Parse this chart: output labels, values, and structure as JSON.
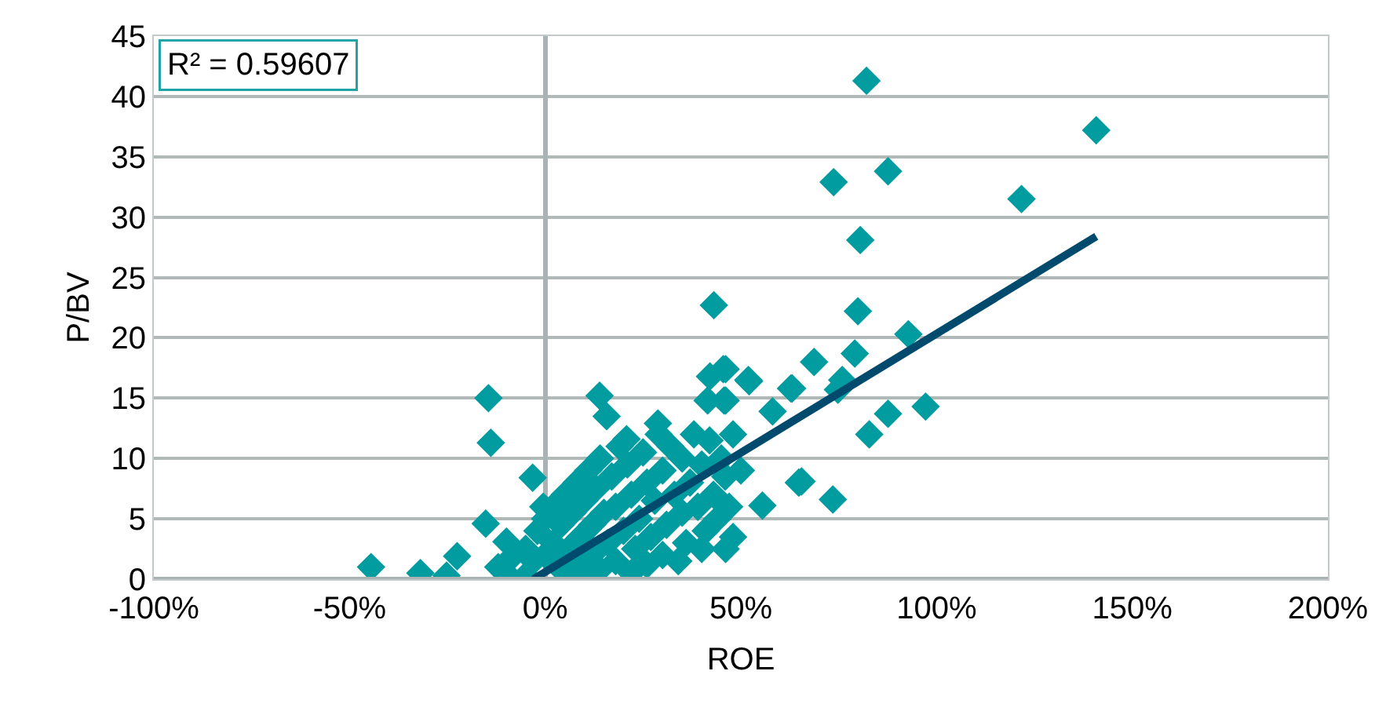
{
  "chart_data": {
    "type": "scatter",
    "xlabel": "ROE",
    "ylabel": "P/BV",
    "annotations": [
      "R² = 0.59607"
    ],
    "xlim": [
      -100,
      200
    ],
    "ylim": [
      0,
      45
    ],
    "xticks": [
      {
        "value": -100,
        "label": "-100%"
      },
      {
        "value": -50,
        "label": "-50%"
      },
      {
        "value": 0,
        "label": "0%"
      },
      {
        "value": 50,
        "label": "50%"
      },
      {
        "value": 100,
        "label": "100%"
      },
      {
        "value": 150,
        "label": "150%"
      },
      {
        "value": 200,
        "label": "200%"
      }
    ],
    "yticks": [
      0,
      5,
      10,
      15,
      20,
      25,
      30,
      35,
      40,
      45
    ],
    "grid": "y",
    "series": [
      {
        "color": "#009ca0",
        "marker": "diamond",
        "x": [
          82.1,
          140.8,
          73.7,
          87.6,
          121.7,
          80.5,
          43.1,
          79.9,
          92.8,
          79.1,
          68.7,
          51.9,
          63.1,
          74.8,
          75.9,
          97.2,
          87.6,
          82.8,
          73.5,
          64.8,
          45.5,
          45.7,
          -14.5,
          -13.9,
          -44.5,
          -31.9,
          -25.2,
          -22.5,
          -15.2,
          -3.2,
          -0.5,
          13.9,
          15.7,
          20.8,
          28.8,
          46.1,
          42.1,
          52.1,
          46.1,
          41.5,
          62.8,
          58.1,
          65.5,
          55.5,
          46.1,
          -9.9,
          -12,
          -10,
          -8,
          -5,
          -5,
          -3,
          -2,
          0,
          0,
          2,
          2,
          3,
          4,
          5,
          5,
          6,
          7,
          8,
          8,
          9,
          10,
          10,
          11,
          12,
          12,
          13,
          14,
          14,
          15,
          16,
          17,
          18,
          18,
          19,
          20,
          21,
          22,
          22,
          23,
          24,
          25,
          26,
          26,
          27,
          28,
          29,
          30,
          30,
          31,
          32,
          33,
          34,
          35,
          35,
          36,
          37,
          38,
          39,
          40,
          40,
          41,
          42,
          43,
          44,
          45,
          46,
          47,
          48,
          48,
          50
        ],
        "values": [
          41.3,
          37.2,
          32.9,
          33.8,
          31.5,
          28.1,
          22.7,
          22.2,
          20.3,
          18.7,
          18.0,
          16.5,
          15.8,
          15.7,
          16.5,
          14.3,
          13.7,
          12.0,
          6.6,
          8.0,
          17.4,
          14.8,
          15.0,
          11.3,
          1.0,
          0.5,
          0.3,
          1.9,
          4.6,
          8.4,
          6.0,
          15.2,
          13.5,
          11.6,
          12.9,
          17.4,
          16.8,
          16.4,
          14.8,
          14.8,
          15.8,
          13.9,
          8.1,
          6.1,
          2.5,
          3.1,
          1,
          0.5,
          2,
          0.3,
          2.5,
          1.5,
          4,
          2,
          5,
          3,
          6,
          1.2,
          4.5,
          7,
          0.5,
          2.5,
          5.5,
          1,
          8,
          3.5,
          6.5,
          0.2,
          9,
          2,
          4.5,
          7.5,
          0.8,
          10,
          5.5,
          3,
          8.5,
          1.5,
          6,
          11,
          4,
          9.5,
          0.5,
          7,
          2.5,
          5,
          10.5,
          8,
          1.2,
          3.5,
          6.5,
          12,
          9,
          2,
          4.5,
          11,
          7,
          1.5,
          5.5,
          10,
          3,
          8,
          12,
          6,
          2.5,
          9.5,
          4,
          11.5,
          7,
          5,
          10,
          8.5,
          6,
          3.5,
          12,
          9
        ]
      },
      {
        "type": "line",
        "color": "#004a6e",
        "line_style": "solid",
        "marker": "none",
        "x": [
          -3,
          140.8
        ],
        "values": [
          0,
          28.4
        ]
      }
    ]
  }
}
